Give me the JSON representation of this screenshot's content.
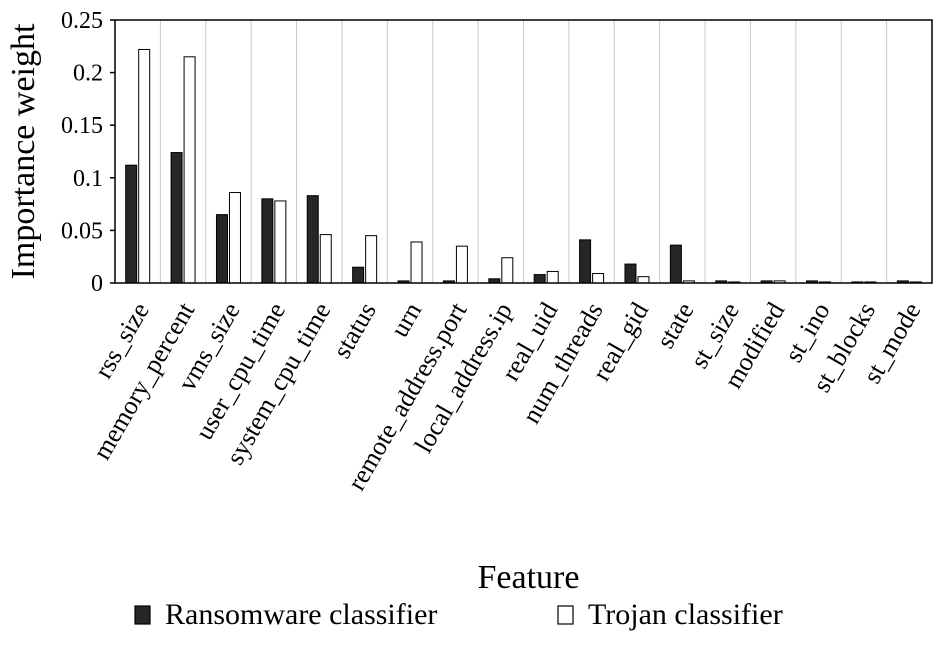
{
  "chart_data": {
    "type": "bar",
    "xlabel": "Feature",
    "ylabel": "Importance weight",
    "ylim": [
      0,
      0.25
    ],
    "yticks": [
      {
        "value": 0,
        "label": "0"
      },
      {
        "value": 0.05,
        "label": "0.05"
      },
      {
        "value": 0.1,
        "label": "0.1"
      },
      {
        "value": 0.15,
        "label": "0.15"
      },
      {
        "value": 0.2,
        "label": "0.2"
      },
      {
        "value": 0.25,
        "label": "0.25"
      }
    ],
    "grid": "vertical",
    "legend_position": "bottom",
    "categories": [
      "rss_size",
      "memory_percent",
      "vms_size",
      "user_cpu_time",
      "system_cpu_time",
      "status",
      "urn",
      "remote_address.port",
      "local_address.ip",
      "real_uid",
      "num_threads",
      "real_gid",
      "state",
      "st_size",
      "modified",
      "st_ino",
      "st_blocks",
      "st_mode"
    ],
    "series": [
      {
        "name": "Ransomware classifier",
        "color": "#262626",
        "values": [
          0.112,
          0.124,
          0.065,
          0.08,
          0.083,
          0.015,
          0.002,
          0.002,
          0.004,
          0.008,
          0.041,
          0.018,
          0.036,
          0.002,
          0.002,
          0.002,
          0.001,
          0.002
        ]
      },
      {
        "name": "Trojan classifier",
        "color": "#ffffff",
        "values": [
          0.222,
          0.215,
          0.086,
          0.078,
          0.046,
          0.045,
          0.039,
          0.035,
          0.024,
          0.011,
          0.009,
          0.006,
          0.002,
          0.001,
          0.002,
          0.001,
          0.001,
          0.001
        ]
      }
    ]
  }
}
